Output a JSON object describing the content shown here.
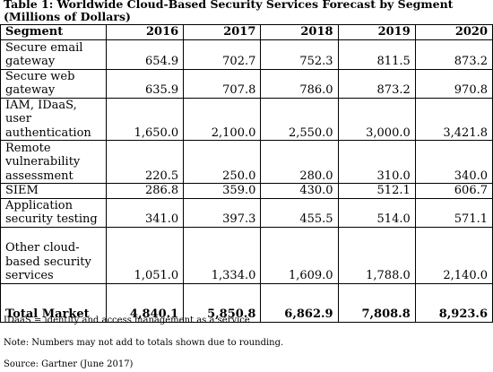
{
  "title": "Table 1: Worldwide Cloud-Based Security Services Forecast by Segment (Millions of Dollars)",
  "table": {
    "header": [
      "Segment",
      "2016",
      "2017",
      "2018",
      "2019",
      "2020"
    ],
    "rows": [
      [
        "Secure email gateway",
        "654.9",
        "702.7",
        "752.3",
        "811.5",
        "873.2"
      ],
      [
        "Secure web gateway",
        "635.9",
        "707.8",
        "786.0",
        "873.2",
        "970.8"
      ],
      [
        "IAM, IDaaS, user authentication",
        "1,650.0",
        "2,100.0",
        "2,550.0",
        "3,000.0",
        "3,421.8"
      ],
      [
        "Remote vulnerability assessment",
        "220.5",
        "250.0",
        "280.0",
        "310.0",
        "340.0"
      ],
      [
        "SIEM",
        "286.8",
        "359.0",
        "430.0",
        "512.1",
        "606.7"
      ],
      [
        "Application security testing",
        "341.0",
        "397.3",
        "455.5",
        "514.0",
        "571.1"
      ],
      [
        "Other cloud-based security services",
        "1,051.0",
        "1,334.0",
        "1,609.0",
        "1,788.0",
        "2,140.0"
      ],
      [
        "Total Market",
        "4,840.1",
        "5,850.8",
        "6,862.9",
        "7,808.8",
        "8,923.6"
      ]
    ]
  },
  "notes": [
    "IDaaS = identity and access management as a service",
    "Note: Numbers may not add to totals shown due to rounding.",
    "Source: Gartner (June 2017)"
  ]
}
